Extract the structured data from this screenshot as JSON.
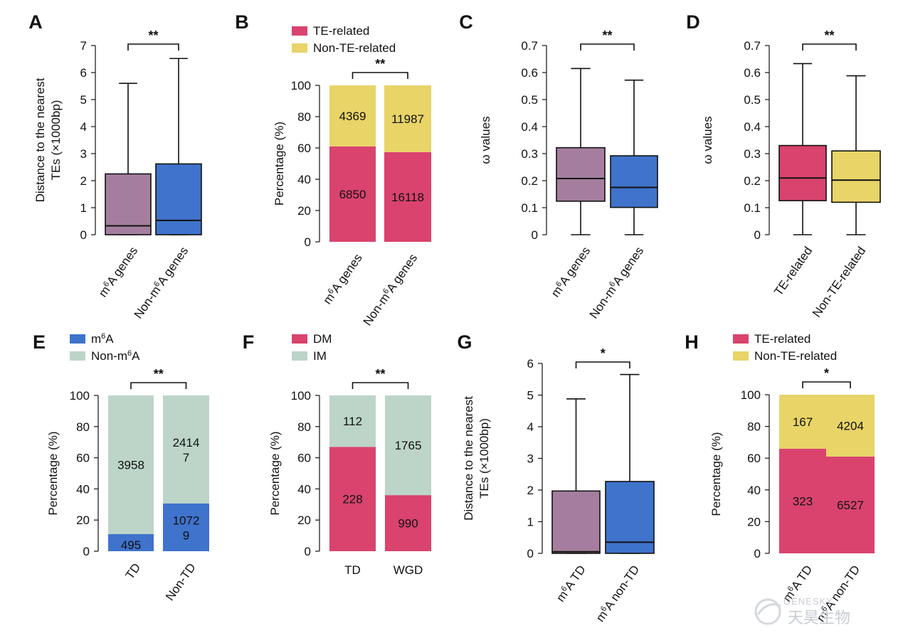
{
  "chart_data": [
    {
      "panel": "A",
      "type": "box",
      "ylabel": "Distance to the nearest TEs (×1000bp)",
      "ylim": [
        0,
        7
      ],
      "yticks": [
        0,
        1,
        2,
        3,
        4,
        5,
        6,
        7
      ],
      "categories": [
        "m⁶A genes",
        "Non-m⁶A genes"
      ],
      "boxes": [
        {
          "min": 0,
          "q1": 0,
          "median": 0.33,
          "q3": 2.25,
          "max": 5.6,
          "color": "#a57e9f"
        },
        {
          "min": 0,
          "q1": 0,
          "median": 0.53,
          "q3": 2.62,
          "max": 6.52,
          "color": "#3f73cc"
        }
      ],
      "significance": "**"
    },
    {
      "panel": "B",
      "type": "stacked-bar",
      "ylabel": "Percentage (%)",
      "ylim": [
        0,
        100
      ],
      "yticks": [
        0,
        20,
        40,
        60,
        80,
        100
      ],
      "categories": [
        "m⁶A genes",
        "Non-m⁶A genes"
      ],
      "series": [
        {
          "name": "TE-related",
          "color": "#d9436e",
          "percent": [
            61,
            57.3
          ],
          "labels": [
            "6850",
            "16118"
          ]
        },
        {
          "name": "Non-TE-related",
          "color": "#e8d467",
          "percent": [
            39,
            42.7
          ],
          "labels": [
            "4369",
            "11987"
          ]
        }
      ],
      "significance": "**"
    },
    {
      "panel": "C",
      "type": "box",
      "ylabel": "ω values",
      "ylim": [
        0,
        0.7
      ],
      "yticks": [
        "0",
        "0.1",
        "0.2",
        "0.3",
        "0.4",
        "0.5",
        "0.6",
        "0.7"
      ],
      "categories": [
        "m⁶A genes",
        "Non-m⁶A genes"
      ],
      "boxes": [
        {
          "min": 0,
          "q1": 0.124,
          "median": 0.208,
          "q3": 0.322,
          "max": 0.615,
          "color": "#a57e9f"
        },
        {
          "min": 0,
          "q1": 0.101,
          "median": 0.175,
          "q3": 0.292,
          "max": 0.572,
          "color": "#3f73cc"
        }
      ],
      "significance": "**"
    },
    {
      "panel": "D",
      "type": "box",
      "ylabel": "ω values",
      "ylim": [
        0,
        0.7
      ],
      "yticks": [
        "0",
        "0.1",
        "0.2",
        "0.3",
        "0.4",
        "0.5",
        "0.6",
        "0.7"
      ],
      "categories": [
        "TE-related",
        "Non-TE-related"
      ],
      "boxes": [
        {
          "min": 0,
          "q1": 0.126,
          "median": 0.21,
          "q3": 0.33,
          "max": 0.633,
          "color": "#d9436e"
        },
        {
          "min": 0,
          "q1": 0.12,
          "median": 0.202,
          "q3": 0.31,
          "max": 0.588,
          "color": "#e8d467"
        }
      ],
      "significance": "**"
    },
    {
      "panel": "E",
      "type": "stacked-bar",
      "ylabel": "Percentage (%)",
      "ylim": [
        0,
        100
      ],
      "yticks": [
        0,
        20,
        40,
        60,
        80,
        100
      ],
      "categories": [
        "TD",
        "Non-TD"
      ],
      "series": [
        {
          "name": "m⁶A",
          "color": "#3f73cc",
          "percent": [
            11,
            30.7
          ],
          "labels": [
            "495",
            "1072\n9"
          ]
        },
        {
          "name": "Non-m⁶A",
          "color": "#bcd5c8",
          "percent": [
            89,
            69.3
          ],
          "labels": [
            "3958",
            "2414\n7"
          ]
        }
      ],
      "significance": "**"
    },
    {
      "panel": "F",
      "type": "stacked-bar",
      "ylabel": "Percentage (%)",
      "ylim": [
        0,
        100
      ],
      "yticks": [
        0,
        20,
        40,
        60,
        80,
        100
      ],
      "categories": [
        "TD",
        "WGD"
      ],
      "series": [
        {
          "name": "DM",
          "color": "#d9436e",
          "percent": [
            67,
            36
          ],
          "labels": [
            "228",
            "990"
          ]
        },
        {
          "name": "IM",
          "color": "#bcd5c8",
          "percent": [
            33,
            64
          ],
          "labels": [
            "112",
            "1765"
          ]
        }
      ],
      "significance": "**"
    },
    {
      "panel": "G",
      "type": "box",
      "ylabel": "Distance to the nearest TEs (×1000bp)",
      "ylim": [
        0,
        6
      ],
      "yticks": [
        0,
        1,
        2,
        3,
        4,
        5,
        6
      ],
      "categories": [
        "m⁶A TD",
        "m⁶A non-TD"
      ],
      "boxes": [
        {
          "min": 0,
          "q1": 0,
          "median": 0.05,
          "q3": 1.97,
          "max": 4.88,
          "color": "#a57e9f"
        },
        {
          "min": 0,
          "q1": 0,
          "median": 0.35,
          "q3": 2.27,
          "max": 5.65,
          "color": "#3f73cc"
        }
      ],
      "significance": "*"
    },
    {
      "panel": "H",
      "type": "stacked-bar",
      "ylabel": "Percentage (%)",
      "ylim": [
        0,
        100
      ],
      "yticks": [
        0,
        20,
        40,
        60,
        80,
        100
      ],
      "categories": [
        "m⁶A TD",
        "m⁶A non-TD"
      ],
      "series": [
        {
          "name": "TE-related",
          "color": "#d9436e",
          "percent": [
            66,
            61
          ],
          "labels": [
            "323",
            "6527"
          ]
        },
        {
          "name": "Non-TE-related",
          "color": "#e8d467",
          "percent": [
            34,
            39
          ],
          "labels": [
            "167",
            "4204"
          ]
        }
      ],
      "significance": "*"
    }
  ],
  "watermark": {
    "brand_en": "GENESKY",
    "brand_cn": "天昊生物"
  }
}
